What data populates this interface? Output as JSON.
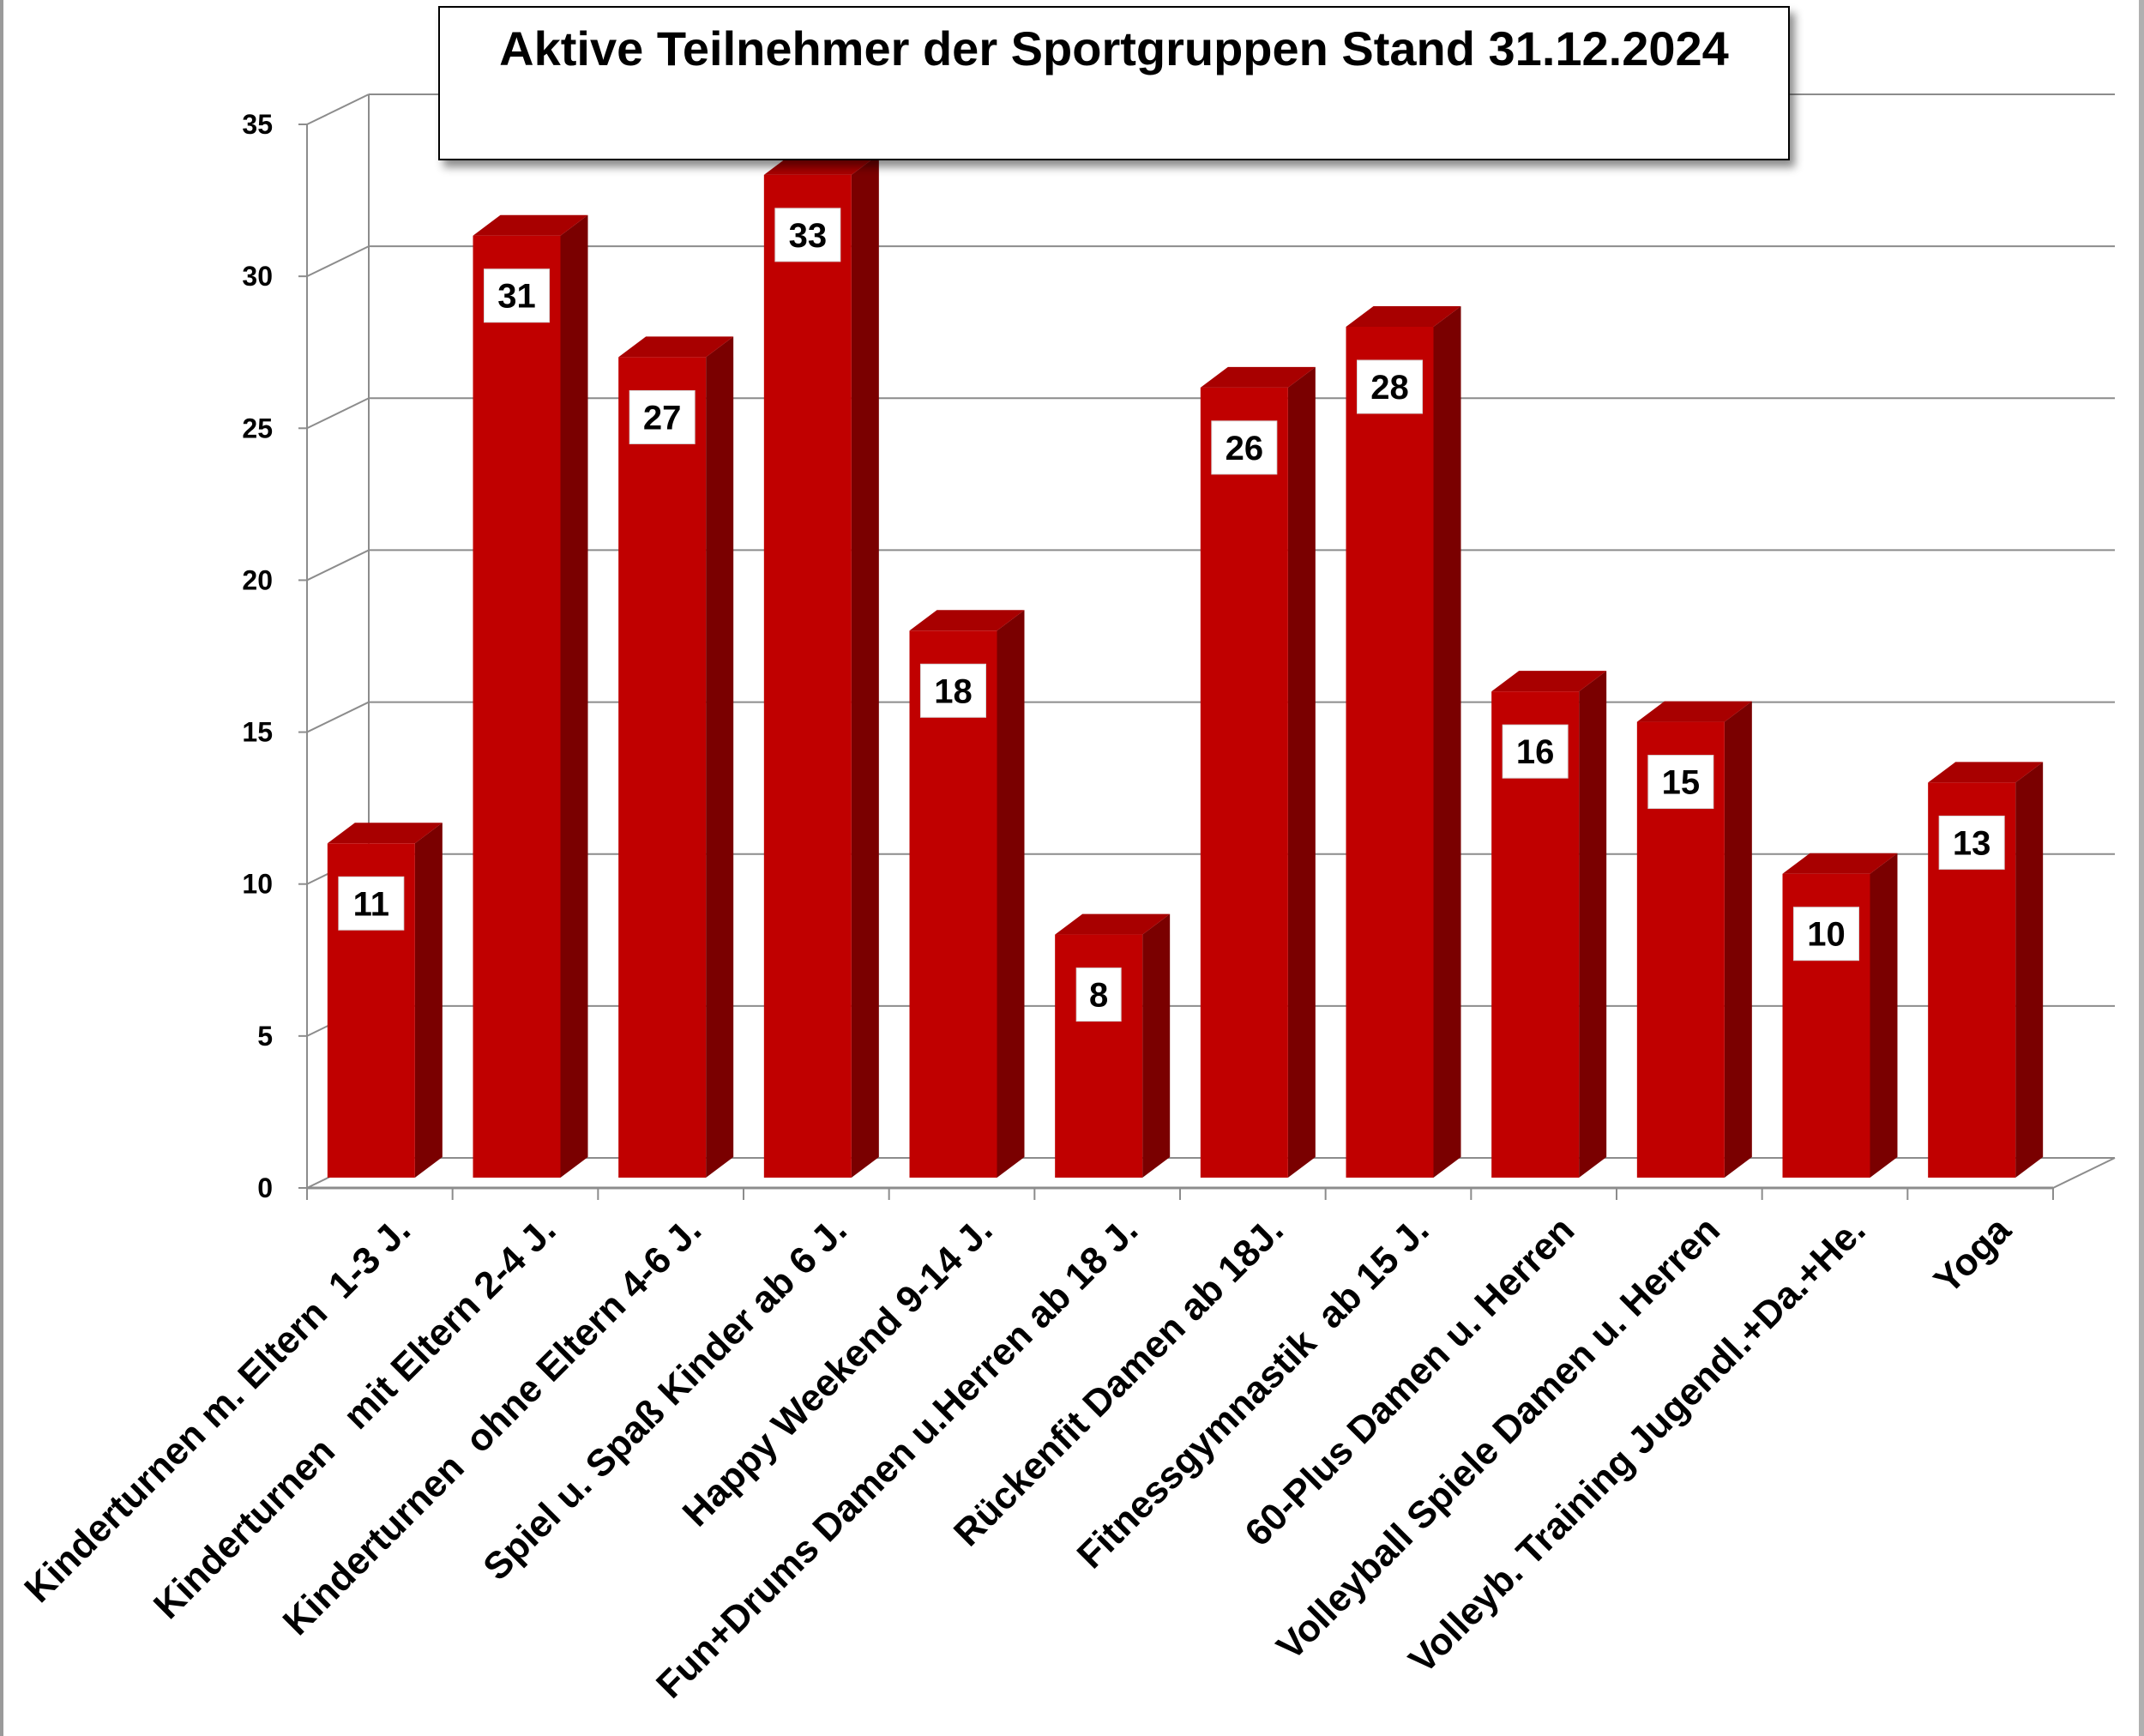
{
  "chart_data": {
    "type": "bar",
    "title": "Aktive Teilnehmer der Sportgruppen Stand 31.12.2024",
    "categories": [
      "Kinderturnen m. Eltern  1-3 J.",
      "Kinderturnen   mit Eltern 2-4 J.",
      "Kinderturnen  ohne Eltern 4-6 J.",
      "Spiel u. Spaß Kinder ab 6 J.",
      "Happy Weekend 9-14 J.",
      "Fun+Drums Damen u.Herren ab 18 J.",
      "Rückenfit Damen ab 18J.",
      "Fitnessgymnastik  ab 15 J.",
      "60-Plus Damen u. Herren",
      "Volleyball Spiele Damen u. Herren",
      "Volleyb. Training Jugendl.+Da.+He.",
      "Yoga"
    ],
    "values": [
      11,
      31,
      27,
      33,
      18,
      8,
      26,
      28,
      16,
      15,
      10,
      13
    ],
    "yticks": [
      0,
      5,
      10,
      15,
      20,
      25,
      30,
      35
    ],
    "ylim": [
      0,
      35
    ],
    "xlabel": "",
    "ylabel": "",
    "grid": true,
    "legend": "none",
    "style": "3d-column",
    "colors": {
      "bar_front": "#c00000",
      "bar_side": "#7a0000",
      "bar_top": "#a80000",
      "grid": "#8c8c8c",
      "label_box": "#ffffff"
    }
  }
}
